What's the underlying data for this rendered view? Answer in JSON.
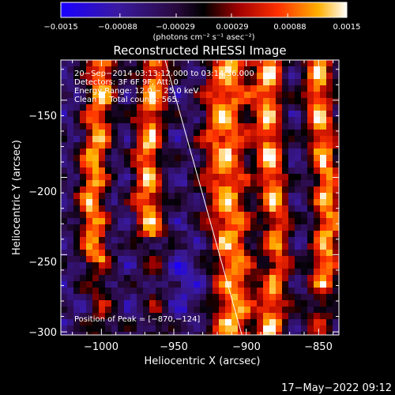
{
  "colorbar": {
    "tick_labels": [
      "−0.0015",
      "−0.00088",
      "−0.00029",
      "0.00029",
      "0.00088",
      "0.0015"
    ],
    "unit_label": "(photons cm⁻² s⁻¹ asec⁻²)",
    "min": -0.0015,
    "max": 0.0015
  },
  "annotations": {
    "time_range": "20−Sep−2014 03:13:12.000 to 03:14:36.000",
    "detectors": "Detectors: 3F 6F 9F, Att: 0",
    "energy": "Energy Range: 12.0 − 25.0 keV",
    "counts": "Clean     Total counts: 565.",
    "peak": "Position of Peak = [−870,−124]"
  },
  "timestamp": "17−May−2022 09:12",
  "chart_data": {
    "type": "heatmap",
    "title": "Reconstructed RHESSI Image",
    "xlabel": "Heliocentric X (arcsec)",
    "ylabel": "Heliocentric Y (arcsec)",
    "xlim": [
      -1028,
      -836
    ],
    "ylim": [
      -302,
      -124
    ],
    "x_ticks": [
      -1000,
      -950,
      -900,
      -850
    ],
    "x_tick_labels": [
      "−1000",
      "−950",
      "−900",
      "−850"
    ],
    "y_ticks": [
      -300,
      -250,
      -200,
      -150
    ],
    "y_tick_labels": [
      "−300",
      "−250",
      "−200",
      "−150"
    ],
    "colormap": "blue-purple-red-yellow-white",
    "limb_line": [
      [
        -956,
        -124
      ],
      [
        -903,
        -302
      ]
    ],
    "bright_ridges_x": [
      -1003,
      -965,
      -912,
      -882,
      -847
    ]
  }
}
